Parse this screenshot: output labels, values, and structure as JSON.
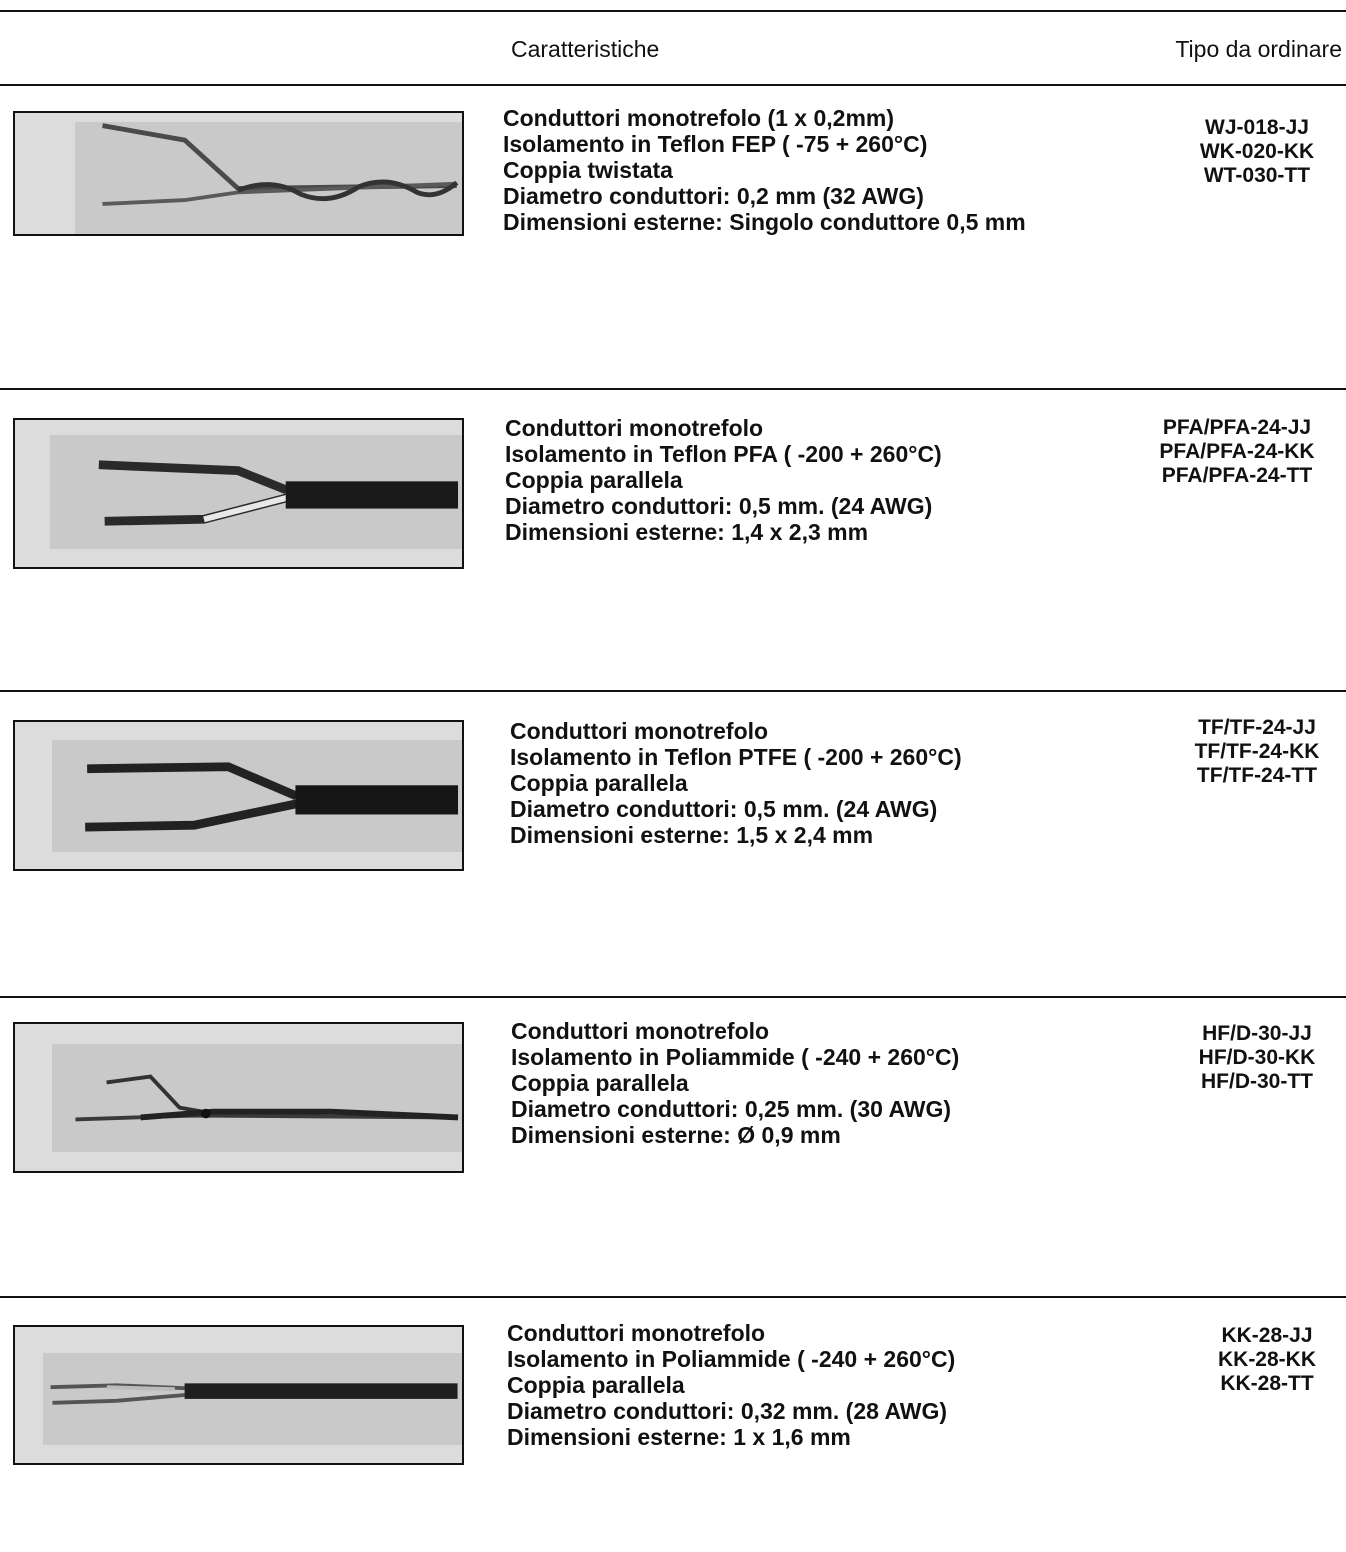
{
  "header": {
    "col_features": "Caratteristiche",
    "col_order": "Tipo da ordinare"
  },
  "rows": [
    {
      "features": [
        "Conduttori monotrefolo (1 x 0,2mm)",
        "Isolamento in Teflon FEP  ( -75 + 260°C)",
        "Coppia twistata",
        "Diametro conduttori: 0,2 mm (32 AWG)",
        "Dimensioni esterne: Singolo conduttore 0,5 mm"
      ],
      "codes": [
        "WJ-018-JJ",
        "WK-020-KK",
        "WT-030-TT"
      ]
    },
    {
      "features": [
        "Conduttori monotrefolo",
        "Isolamento in Teflon PFA ( -200 + 260°C)",
        "Coppia parallela",
        "Diametro conduttori: 0,5 mm. (24 AWG)",
        "Dimensioni esterne: 1,4 x 2,3 mm"
      ],
      "codes": [
        "PFA/PFA-24-JJ",
        "PFA/PFA-24-KK",
        "PFA/PFA-24-TT"
      ]
    },
    {
      "features": [
        "Conduttori monotrefolo",
        "Isolamento in Teflon PTFE ( -200 + 260°C)",
        "Coppia parallela",
        "Diametro conduttori: 0,5 mm. (24 AWG)",
        "Dimensioni esterne: 1,5 x 2,4 mm"
      ],
      "codes": [
        "TF/TF-24-JJ",
        "TF/TF-24-KK",
        "TF/TF-24-TT"
      ]
    },
    {
      "features": [
        "Conduttori monotrefolo",
        "Isolamento in Poliammide ( -240 + 260°C)",
        "Coppia parallela",
        "Diametro conduttori: 0,25 mm. (30 AWG)",
        "Dimensioni esterne: Ø 0,9 mm"
      ],
      "codes": [
        "HF/D-30-JJ",
        "HF/D-30-KK",
        "HF/D-30-TT"
      ]
    },
    {
      "features": [
        "Conduttori monotrefolo",
        "Isolamento in Poliammide ( -240 + 260°C)",
        "Coppia parallela",
        "Diametro conduttori: 0,32 mm. (28 AWG)",
        "Dimensioni esterne: 1 x 1,6 mm"
      ],
      "codes": [
        "KK-28-JJ",
        "KK-28-KK",
        "KK-28-TT"
      ]
    }
  ]
}
